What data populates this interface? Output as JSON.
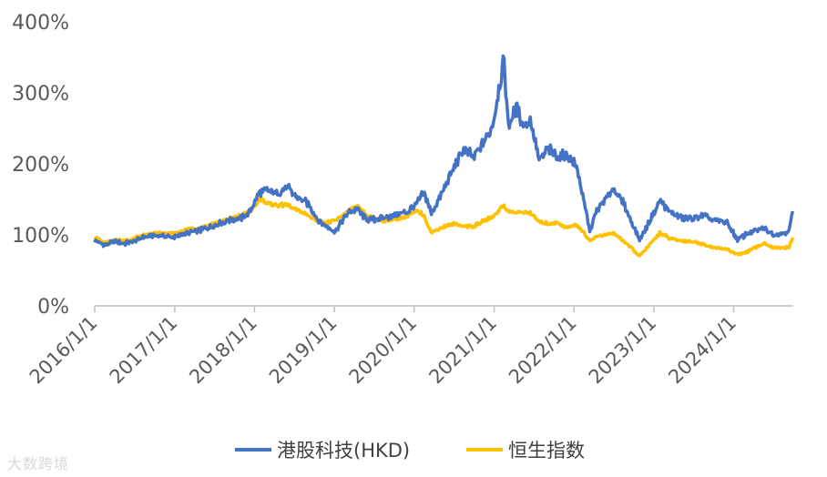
{
  "chart_data": {
    "type": "line",
    "title": "",
    "xlabel": "",
    "ylabel": "",
    "ylim": [
      0,
      4.0
    ],
    "xlim": [
      "2016/1/1",
      "2024/9/30"
    ],
    "grid": false,
    "legend": "bottom",
    "y_ticks": [
      "0%",
      "100%",
      "200%",
      "300%",
      "400%"
    ],
    "x_ticks": [
      "2016/1/1",
      "2017/1/1",
      "2018/1/1",
      "2019/1/1",
      "2020/1/1",
      "2021/1/1",
      "2022/1/1",
      "2023/1/1",
      "2024/1/1"
    ],
    "series": [
      {
        "name": "港股科技(HKD)",
        "color": "#4472C4",
        "points": [
          [
            "2016/1/1",
            0.92
          ],
          [
            "2016/2/15",
            0.86
          ],
          [
            "2016/4/1",
            0.9
          ],
          [
            "2016/6/1",
            0.88
          ],
          [
            "2016/8/1",
            0.96
          ],
          [
            "2016/10/1",
            0.99
          ],
          [
            "2017/1/1",
            0.97
          ],
          [
            "2017/3/1",
            1.03
          ],
          [
            "2017/5/1",
            1.07
          ],
          [
            "2017/7/1",
            1.13
          ],
          [
            "2017/9/1",
            1.2
          ],
          [
            "2017/11/1",
            1.24
          ],
          [
            "2017/12/1",
            1.28
          ],
          [
            "2018/1/1",
            1.45
          ],
          [
            "2018/1/25",
            1.6
          ],
          [
            "2018/3/1",
            1.63
          ],
          [
            "2018/4/15",
            1.58
          ],
          [
            "2018/6/1",
            1.68
          ],
          [
            "2018/7/1",
            1.55
          ],
          [
            "2018/9/1",
            1.45
          ],
          [
            "2018/10/25",
            1.18
          ],
          [
            "2018/12/15",
            1.08
          ],
          [
            "2019/1/5",
            1.04
          ],
          [
            "2019/3/1",
            1.3
          ],
          [
            "2019/4/15",
            1.36
          ],
          [
            "2019/6/1",
            1.2
          ],
          [
            "2019/8/15",
            1.24
          ],
          [
            "2019/10/1",
            1.28
          ],
          [
            "2019/12/1",
            1.32
          ],
          [
            "2020/1/15",
            1.45
          ],
          [
            "2020/2/15",
            1.6
          ],
          [
            "2020/3/20",
            1.3
          ],
          [
            "2020/5/1",
            1.55
          ],
          [
            "2020/7/1",
            1.95
          ],
          [
            "2020/8/15",
            2.2
          ],
          [
            "2020/10/1",
            2.1
          ],
          [
            "2020/11/15",
            2.3
          ],
          [
            "2020/12/31",
            2.6
          ],
          [
            "2021/1/20",
            3.05
          ],
          [
            "2021/2/15",
            3.45
          ],
          [
            "2021/3/5",
            2.55
          ],
          [
            "2021/4/15",
            2.78
          ],
          [
            "2021/5/15",
            2.52
          ],
          [
            "2021/6/15",
            2.62
          ],
          [
            "2021/7/28",
            2.02
          ],
          [
            "2021/9/1",
            2.22
          ],
          [
            "2021/10/15",
            2.1
          ],
          [
            "2021/12/1",
            2.12
          ],
          [
            "2022/1/15",
            1.95
          ],
          [
            "2022/3/15",
            1.05
          ],
          [
            "2022/4/15",
            1.35
          ],
          [
            "2022/6/30",
            1.65
          ],
          [
            "2022/8/15",
            1.45
          ],
          [
            "2022/10/28",
            0.92
          ],
          [
            "2022/12/31",
            1.3
          ],
          [
            "2023/1/28",
            1.48
          ],
          [
            "2023/3/15",
            1.32
          ],
          [
            "2023/5/1",
            1.25
          ],
          [
            "2023/7/1",
            1.22
          ],
          [
            "2023/8/15",
            1.28
          ],
          [
            "2023/10/1",
            1.2
          ],
          [
            "2023/12/1",
            1.18
          ],
          [
            "2024/1/20",
            0.92
          ],
          [
            "2024/3/1",
            1.02
          ],
          [
            "2024/5/20",
            1.1
          ],
          [
            "2024/7/1",
            1.0
          ],
          [
            "2024/9/10",
            1.05
          ],
          [
            "2024/9/30",
            1.38
          ]
        ]
      },
      {
        "name": "恒生指数",
        "color": "#FFC000",
        "points": [
          [
            "2016/1/1",
            0.98
          ],
          [
            "2016/2/15",
            0.88
          ],
          [
            "2016/4/1",
            0.93
          ],
          [
            "2016/6/1",
            0.92
          ],
          [
            "2016/8/1",
            0.99
          ],
          [
            "2016/10/1",
            1.02
          ],
          [
            "2017/1/1",
            1.02
          ],
          [
            "2017/3/1",
            1.07
          ],
          [
            "2017/5/1",
            1.1
          ],
          [
            "2017/7/1",
            1.17
          ],
          [
            "2017/9/1",
            1.22
          ],
          [
            "2017/11/1",
            1.27
          ],
          [
            "2017/12/1",
            1.32
          ],
          [
            "2018/1/1",
            1.38
          ],
          [
            "2018/1/25",
            1.52
          ],
          [
            "2018/3/1",
            1.44
          ],
          [
            "2018/4/15",
            1.42
          ],
          [
            "2018/6/1",
            1.42
          ],
          [
            "2018/7/1",
            1.36
          ],
          [
            "2018/9/1",
            1.28
          ],
          [
            "2018/10/25",
            1.18
          ],
          [
            "2018/12/15",
            1.18
          ],
          [
            "2019/1/5",
            1.2
          ],
          [
            "2019/3/1",
            1.33
          ],
          [
            "2019/4/15",
            1.4
          ],
          [
            "2019/6/1",
            1.26
          ],
          [
            "2019/8/15",
            1.2
          ],
          [
            "2019/10/1",
            1.22
          ],
          [
            "2019/12/1",
            1.26
          ],
          [
            "2020/1/15",
            1.34
          ],
          [
            "2020/2/15",
            1.27
          ],
          [
            "2020/3/20",
            1.03
          ],
          [
            "2020/5/1",
            1.1
          ],
          [
            "2020/7/1",
            1.16
          ],
          [
            "2020/8/15",
            1.12
          ],
          [
            "2020/10/1",
            1.12
          ],
          [
            "2020/11/15",
            1.2
          ],
          [
            "2020/12/31",
            1.26
          ],
          [
            "2021/1/20",
            1.34
          ],
          [
            "2021/2/15",
            1.42
          ],
          [
            "2021/3/5",
            1.33
          ],
          [
            "2021/4/15",
            1.31
          ],
          [
            "2021/5/15",
            1.32
          ],
          [
            "2021/6/15",
            1.31
          ],
          [
            "2021/7/28",
            1.18
          ],
          [
            "2021/9/1",
            1.16
          ],
          [
            "2021/10/15",
            1.17
          ],
          [
            "2021/12/1",
            1.1
          ],
          [
            "2022/1/15",
            1.14
          ],
          [
            "2022/3/15",
            0.92
          ],
          [
            "2022/4/15",
            0.98
          ],
          [
            "2022/6/30",
            1.02
          ],
          [
            "2022/8/15",
            0.92
          ],
          [
            "2022/10/28",
            0.7
          ],
          [
            "2022/12/31",
            0.92
          ],
          [
            "2023/1/28",
            1.03
          ],
          [
            "2023/3/15",
            0.95
          ],
          [
            "2023/5/1",
            0.92
          ],
          [
            "2023/7/1",
            0.9
          ],
          [
            "2023/8/15",
            0.87
          ],
          [
            "2023/10/1",
            0.82
          ],
          [
            "2023/12/1",
            0.8
          ],
          [
            "2024/1/20",
            0.72
          ],
          [
            "2024/3/1",
            0.76
          ],
          [
            "2024/5/20",
            0.88
          ],
          [
            "2024/7/1",
            0.82
          ],
          [
            "2024/9/10",
            0.82
          ],
          [
            "2024/9/30",
            0.98
          ]
        ]
      }
    ]
  },
  "watermark": "大数跨境"
}
